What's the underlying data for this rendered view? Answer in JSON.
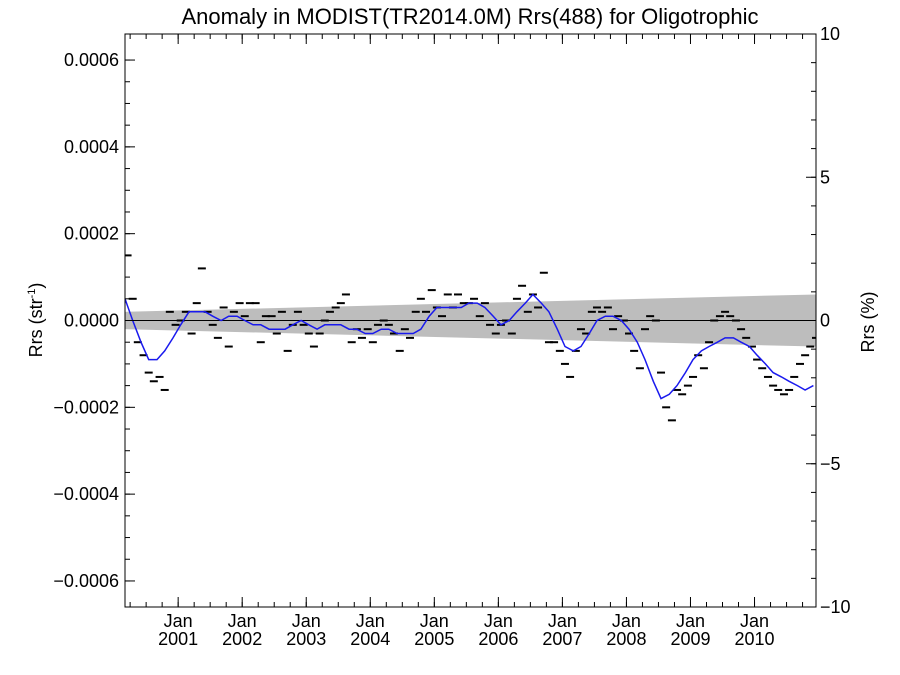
{
  "chart_data": {
    "type": "line",
    "title": "Anomaly in MODIST(TR2014.0M) Rrs(488) for Oligotrophic",
    "ylabel_left_text": "Rrs (str",
    "ylabel_left_sup": "-1",
    "ylabel_left_close": ")",
    "ylabel_right": "Rrs (%)",
    "xlim": [
      2000.17,
      2010.96
    ],
    "ylim": [
      -0.00066,
      0.00066
    ],
    "ylim_right": [
      -10,
      10
    ],
    "grid": false,
    "x_ticks": [
      {
        "month": "Jan",
        "year": "2001",
        "x": 2001.0
      },
      {
        "month": "Jan",
        "year": "2002",
        "x": 2002.0
      },
      {
        "month": "Jan",
        "year": "2003",
        "x": 2003.0
      },
      {
        "month": "Jan",
        "year": "2004",
        "x": 2004.0
      },
      {
        "month": "Jan",
        "year": "2005",
        "x": 2005.0
      },
      {
        "month": "Jan",
        "year": "2006",
        "x": 2006.0
      },
      {
        "month": "Jan",
        "year": "2007",
        "x": 2007.0
      },
      {
        "month": "Jan",
        "year": "2008",
        "x": 2008.0
      },
      {
        "month": "Jan",
        "year": "2009",
        "x": 2009.0
      },
      {
        "month": "Jan",
        "year": "2010",
        "x": 2010.0
      }
    ],
    "y_ticks_left": [
      {
        "label": "0.0006",
        "value": 0.0006
      },
      {
        "label": "0.0004",
        "value": 0.0004
      },
      {
        "label": "0.0002",
        "value": 0.0002
      },
      {
        "label": "0.0000",
        "value": 0.0
      },
      {
        "label": "−0.0002",
        "value": -0.0002
      },
      {
        "label": "−0.0004",
        "value": -0.0004
      },
      {
        "label": "−0.0006",
        "value": -0.0006
      }
    ],
    "y_ticks_right": [
      {
        "label": "10",
        "value": 10
      },
      {
        "label": "5",
        "value": 5
      },
      {
        "label": "0",
        "value": 0
      },
      {
        "label": "−5",
        "value": -5
      },
      {
        "label": "−10",
        "value": -10
      }
    ],
    "trend_band": {
      "x": [
        2000.17,
        2010.96
      ],
      "upper": [
        2e-05,
        6e-05
      ],
      "lower": [
        -2e-05,
        -6e-05
      ]
    },
    "series": [
      {
        "kind": "points",
        "color": "#000000",
        "x": [
          2000.21,
          2000.29,
          2000.37,
          2000.46,
          2000.54,
          2000.62,
          2000.71,
          2000.79,
          2000.87,
          2000.96,
          2001.04,
          2001.12,
          2001.21,
          2001.29,
          2001.37,
          2001.46,
          2001.54,
          2001.62,
          2001.71,
          2001.79,
          2001.87,
          2001.96,
          2002.04,
          2002.12,
          2002.21,
          2002.29,
          2002.37,
          2002.46,
          2002.54,
          2002.62,
          2002.71,
          2002.79,
          2002.87,
          2002.96,
          2003.04,
          2003.12,
          2003.21,
          2003.29,
          2003.37,
          2003.46,
          2003.54,
          2003.62,
          2003.71,
          2003.79,
          2003.87,
          2003.96,
          2004.04,
          2004.12,
          2004.21,
          2004.29,
          2004.37,
          2004.46,
          2004.54,
          2004.62,
          2004.71,
          2004.79,
          2004.87,
          2004.96,
          2005.04,
          2005.12,
          2005.21,
          2005.29,
          2005.37,
          2005.46,
          2005.54,
          2005.62,
          2005.71,
          2005.79,
          2005.87,
          2005.96,
          2006.04,
          2006.12,
          2006.21,
          2006.29,
          2006.37,
          2006.46,
          2006.54,
          2006.62,
          2006.71,
          2006.79,
          2006.87,
          2006.96,
          2007.04,
          2007.12,
          2007.21,
          2007.29,
          2007.37,
          2007.46,
          2007.54,
          2007.62,
          2007.71,
          2007.79,
          2007.87,
          2007.96,
          2008.04,
          2008.12,
          2008.21,
          2008.29,
          2008.37,
          2008.46,
          2008.54,
          2008.62,
          2008.71,
          2008.79,
          2008.87,
          2008.96,
          2009.04,
          2009.12,
          2009.21,
          2009.29,
          2009.37,
          2009.46,
          2009.54,
          2009.62,
          2009.71,
          2009.79,
          2009.87,
          2009.96,
          2010.04,
          2010.12,
          2010.21,
          2010.29,
          2010.37,
          2010.46,
          2010.54,
          2010.62,
          2010.71,
          2010.79,
          2010.87,
          2010.96
        ],
        "y": [
          0.00015,
          5e-05,
          -5e-05,
          -8e-05,
          -0.00012,
          -0.00014,
          -0.00013,
          -0.00016,
          2e-05,
          -1e-05,
          0.0,
          2e-05,
          -3e-05,
          4e-05,
          0.00012,
          2e-05,
          -1e-05,
          -4e-05,
          3e-05,
          -6e-05,
          2e-05,
          4e-05,
          1e-05,
          4e-05,
          4e-05,
          -5e-05,
          1e-05,
          1e-05,
          -3e-05,
          2e-05,
          -7e-05,
          -1e-05,
          2e-05,
          -1e-05,
          -3e-05,
          -6e-05,
          -3e-05,
          0.0,
          2e-05,
          3e-05,
          4e-05,
          6e-05,
          -5e-05,
          -2e-05,
          -4e-05,
          -2e-05,
          -5e-05,
          -1e-05,
          0.0,
          -1e-05,
          -3e-05,
          -7e-05,
          -2e-05,
          -4e-05,
          2e-05,
          5e-05,
          2e-05,
          7e-05,
          3e-05,
          1e-05,
          6e-05,
          3e-05,
          6e-05,
          4e-05,
          4e-05,
          5e-05,
          1e-05,
          4e-05,
          -1e-05,
          -3e-05,
          -1e-05,
          0.0,
          -3e-05,
          5e-05,
          8e-05,
          2e-05,
          6e-05,
          3e-05,
          0.00011,
          -5e-05,
          -5e-05,
          -7e-05,
          -0.0001,
          -0.00013,
          -7e-05,
          -2e-05,
          -3e-05,
          2e-05,
          3e-05,
          2e-05,
          3e-05,
          -2e-05,
          1e-05,
          0.0,
          -3e-05,
          -7e-05,
          -0.00011,
          -2e-05,
          1e-05,
          0.0,
          -0.00012,
          -0.0002,
          -0.00023,
          -0.00016,
          -0.00017,
          -0.00015,
          -0.00013,
          -8e-05,
          -0.00011,
          -5e-05,
          0.0,
          1e-05,
          2e-05,
          1e-05,
          0.0,
          -2e-05,
          -4e-05,
          -6e-05,
          -9e-05,
          -0.00011,
          -0.00013,
          -0.00015,
          -0.00016,
          -0.00017,
          -0.00016,
          -0.00013,
          -0.0001,
          -8e-05,
          -6e-05,
          -4e-05
        ]
      },
      {
        "kind": "line",
        "color": "#1a1aee",
        "x": [
          2000.17,
          2000.29,
          2000.42,
          2000.54,
          2000.67,
          2000.79,
          2000.92,
          2001.04,
          2001.17,
          2001.29,
          2001.42,
          2001.54,
          2001.67,
          2001.79,
          2001.92,
          2002.04,
          2002.17,
          2002.29,
          2002.42,
          2002.54,
          2002.67,
          2002.79,
          2002.92,
          2003.04,
          2003.17,
          2003.29,
          2003.42,
          2003.54,
          2003.67,
          2003.79,
          2003.92,
          2004.04,
          2004.17,
          2004.29,
          2004.42,
          2004.54,
          2004.67,
          2004.79,
          2004.92,
          2005.04,
          2005.17,
          2005.29,
          2005.42,
          2005.54,
          2005.67,
          2005.79,
          2005.92,
          2006.04,
          2006.17,
          2006.29,
          2006.42,
          2006.54,
          2006.67,
          2006.79,
          2006.92,
          2007.04,
          2007.17,
          2007.29,
          2007.42,
          2007.54,
          2007.67,
          2007.79,
          2007.92,
          2008.04,
          2008.17,
          2008.29,
          2008.42,
          2008.54,
          2008.67,
          2008.79,
          2008.92,
          2009.04,
          2009.17,
          2009.29,
          2009.42,
          2009.54,
          2009.67,
          2009.79,
          2009.92,
          2010.04,
          2010.17,
          2010.29,
          2010.42,
          2010.54,
          2010.67,
          2010.79,
          2010.92
        ],
        "y": [
          5e-05,
          0.0,
          -5e-05,
          -9e-05,
          -9e-05,
          -7e-05,
          -4e-05,
          -1e-05,
          2e-05,
          2e-05,
          2e-05,
          1e-05,
          0.0,
          1e-05,
          1e-05,
          0.0,
          -1e-05,
          -1e-05,
          -2e-05,
          -2e-05,
          -2e-05,
          -1e-05,
          0.0,
          -1e-05,
          -2e-05,
          -1e-05,
          -1e-05,
          -1e-05,
          -2e-05,
          -2e-05,
          -3e-05,
          -3e-05,
          -2e-05,
          -2e-05,
          -3e-05,
          -3e-05,
          -3e-05,
          -2e-05,
          1e-05,
          3e-05,
          3e-05,
          3e-05,
          3e-05,
          4e-05,
          4e-05,
          3e-05,
          1e-05,
          -1e-05,
          0.0,
          2e-05,
          4e-05,
          6e-05,
          4e-05,
          2e-05,
          -2e-05,
          -6e-05,
          -7e-05,
          -6e-05,
          -3e-05,
          0.0,
          1e-05,
          1e-05,
          0.0,
          -2e-05,
          -5e-05,
          -9e-05,
          -0.00014,
          -0.00018,
          -0.00017,
          -0.00015,
          -0.00012,
          -9e-05,
          -7e-05,
          -6e-05,
          -5e-05,
          -4e-05,
          -4e-05,
          -5e-05,
          -6e-05,
          -8e-05,
          -0.0001,
          -0.00012,
          -0.00013,
          -0.00014,
          -0.00015,
          -0.00016,
          -0.00015
        ]
      }
    ]
  }
}
